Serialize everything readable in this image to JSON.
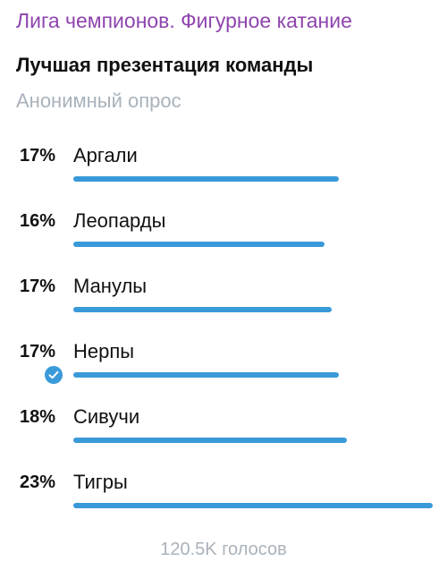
{
  "channel_title": "Лига чемпионов. Фигурное катание",
  "question": "Лучшая презентация команды",
  "poll_type": "Анонимный опрос",
  "accent_color": "#3a9ad9",
  "channel_color": "#8e44ad",
  "options": [
    {
      "percent": "17%",
      "label": "Аргали",
      "fill": 0.74,
      "selected": false
    },
    {
      "percent": "16%",
      "label": "Леопарды",
      "fill": 0.7,
      "selected": false
    },
    {
      "percent": "17%",
      "label": "Манулы",
      "fill": 0.72,
      "selected": false
    },
    {
      "percent": "17%",
      "label": "Нерпы",
      "fill": 0.74,
      "selected": true,
      "selected_icon": "check-circle-icon"
    },
    {
      "percent": "18%",
      "label": "Сивучи",
      "fill": 0.76,
      "selected": false
    },
    {
      "percent": "23%",
      "label": "Тигры",
      "fill": 1.0,
      "selected": false
    }
  ],
  "total_votes": "120.5K голосов"
}
